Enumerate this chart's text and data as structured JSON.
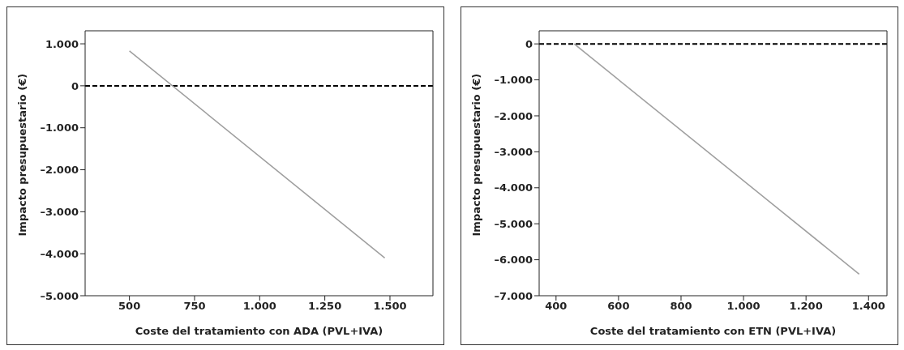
{
  "chart_data": [
    {
      "type": "line",
      "xlabel": "Coste del tratamiento con ADA (PVL+IVA)",
      "ylabel": "Impacto presupuestario (€)",
      "series": [
        {
          "color": "#a0a0a0",
          "x": [
            500,
            1480
          ],
          "values": [
            830,
            -4100
          ]
        }
      ],
      "xlim": [
        330,
        1665
      ],
      "xticks": [
        500,
        750,
        {
          "value": 1000,
          "label": "1.000"
        },
        {
          "value": 1250,
          "label": "1.250"
        },
        {
          "value": 1500,
          "label": "1.500"
        }
      ],
      "ylim": [
        -5000,
        1310
      ],
      "yticks": [
        {
          "value": -5000,
          "label": "–5.000"
        },
        {
          "value": -4000,
          "label": "–4.000"
        },
        {
          "value": -3000,
          "label": "–3.000"
        },
        {
          "value": -2000,
          "label": "–2.000"
        },
        {
          "value": -1000,
          "label": "–1.000"
        },
        0,
        {
          "value": 1000,
          "label": "1.000"
        }
      ],
      "ref_lines": [
        {
          "axis": "y",
          "value": 0,
          "color": "#000000",
          "line_style": "dashed"
        }
      ],
      "grid": false,
      "marker": "none",
      "line_style": "solid"
    },
    {
      "type": "line",
      "xlabel": "Coste del tratamiento con ETN (PVL+IVA)",
      "ylabel": "Impacto presupuestario (€)",
      "series": [
        {
          "color": "#a0a0a0",
          "x": [
            458,
            1370
          ],
          "values": [
            0,
            -6400
          ]
        }
      ],
      "xlim": [
        346,
        1459
      ],
      "xticks": [
        400,
        600,
        800,
        {
          "value": 1000,
          "label": "1.000"
        },
        {
          "value": 1200,
          "label": "1.200"
        },
        {
          "value": 1400,
          "label": "1.400"
        }
      ],
      "ylim": [
        -7000,
        364
      ],
      "yticks": [
        {
          "value": -7000,
          "label": "–7.000"
        },
        {
          "value": -6000,
          "label": "–6.000"
        },
        {
          "value": -5000,
          "label": "–5.000"
        },
        {
          "value": -4000,
          "label": "–4.000"
        },
        {
          "value": -3000,
          "label": "–3.000"
        },
        {
          "value": -2000,
          "label": "–2.000"
        },
        {
          "value": -1000,
          "label": "–1.000"
        },
        0
      ],
      "ref_lines": [
        {
          "axis": "y",
          "value": 0,
          "color": "#000000",
          "line_style": "dashed"
        }
      ],
      "grid": false,
      "marker": "none",
      "line_style": "solid"
    }
  ]
}
